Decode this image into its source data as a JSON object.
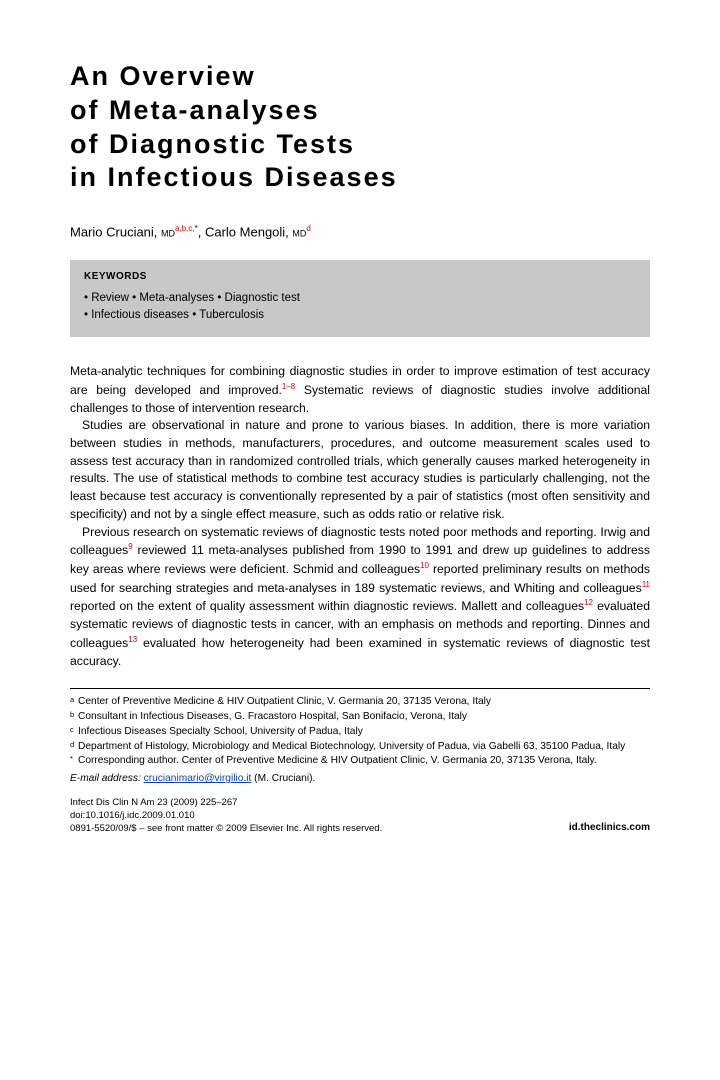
{
  "title_lines": [
    "An Overview",
    "of Meta-analyses",
    "of Diagnostic Tests",
    "in Infectious Diseases"
  ],
  "authors": {
    "a1_name": "Mario Cruciani,",
    "a1_deg": "MD",
    "a1_sup": "a,b,c,",
    "a1_star": "*",
    "a2_name": ", Carlo Mengoli,",
    "a2_deg": "MD",
    "a2_sup": "d"
  },
  "keywords": {
    "title": "KEYWORDS",
    "line1": "• Review • Meta-analyses • Diagnostic test",
    "line2": "• Infectious diseases • Tuberculosis"
  },
  "para1_a": "Meta-analytic techniques for combining diagnostic studies in order to improve estimation of test accuracy are being developed and improved.",
  "para1_sup1": "1–8",
  "para1_b": " Systematic reviews of diagnostic studies involve additional challenges to those of intervention research.",
  "para2": "Studies are observational in nature and prone to various biases. In addition, there is more variation between studies in methods, manufacturers, procedures, and outcome measurement scales used to assess test accuracy than in randomized controlled trials, which generally causes marked heterogeneity in results. The use of statistical methods to combine test accuracy studies is particularly challenging, not the least because test accuracy is conventionally represented by a pair of statistics (most often sensitivity and specificity) and not by a single effect measure, such as odds ratio or relative risk.",
  "para3_a": "Previous research on systematic reviews of diagnostic tests noted poor methods and reporting. Irwig and colleagues",
  "para3_s1": "9",
  "para3_b": " reviewed 11 meta-analyses published from 1990 to 1991 and drew up guidelines to address key areas where reviews were deficient. Schmid and colleagues",
  "para3_s2": "10",
  "para3_c": " reported preliminary results on methods used for searching strategies and meta-analyses in 189 systematic reviews, and Whiting and colleagues",
  "para3_s3": "11",
  "para3_d": " reported on the extent of quality assessment within diagnostic reviews. Mallett and colleagues",
  "para3_s4": "12",
  "para3_e": " evaluated systematic reviews of diagnostic tests in cancer, with an emphasis on methods and reporting. Dinnes and colleagues",
  "para3_s5": "13",
  "para3_f": " evaluated how heterogeneity had been examined in systematic reviews of diagnostic test accuracy.",
  "aff": {
    "a": "Center of Preventive Medicine & HIV Outpatient Clinic, V. Germania 20, 37135 Verona, Italy",
    "b": "Consultant in Infectious Diseases, G. Fracastoro Hospital, San Bonifacio, Verona, Italy",
    "c": "Infectious Diseases Specialty School, University of Padua, Italy",
    "d": "Department of Histology, Microbiology and Medical Biotechnology, University of Padua, via Gabelli 63, 35100 Padua, Italy",
    "star": "Corresponding author. Center of Preventive Medicine & HIV Outpatient Clinic, V. Germania 20, 37135 Verona, Italy."
  },
  "email": {
    "label": "E-mail address:",
    "addr": "crucianimario@virgilio.it",
    "suffix": " (M. Cruciani)."
  },
  "footer": {
    "cite": "Infect Dis Clin N Am 23 (2009) 225–267",
    "doi": "doi:10.1016/j.idc.2009.01.010",
    "copy": "0891-5520/09/$ – see front matter © 2009 Elsevier Inc. All rights reserved.",
    "site": "id.theclinics.com"
  }
}
